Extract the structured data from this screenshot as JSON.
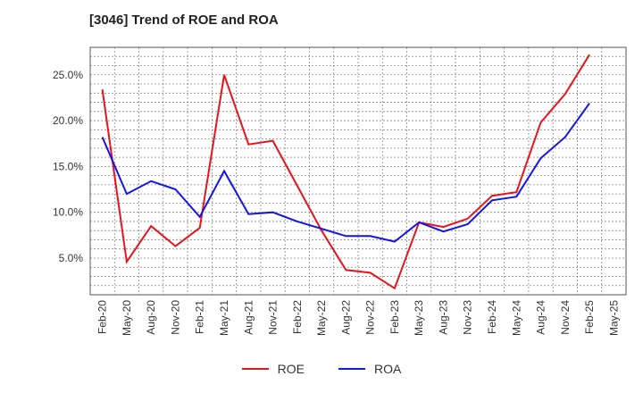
{
  "title": "[3046]  Trend of ROE and ROA",
  "chart_data": {
    "type": "line",
    "title": "[3046]  Trend of ROE and ROA",
    "xlabel": "",
    "ylabel": "",
    "ylim": [
      1.0,
      28.0
    ],
    "yticks": [
      5.0,
      10.0,
      15.0,
      20.0,
      25.0
    ],
    "ytick_labels": [
      "5.0%",
      "10.0%",
      "15.0%",
      "20.0%",
      "25.0%"
    ],
    "grid": true,
    "legend_position": "bottom-center",
    "categories": [
      "Feb-20",
      "May-20",
      "Aug-20",
      "Nov-20",
      "Feb-21",
      "May-21",
      "Aug-21",
      "Nov-21",
      "Feb-22",
      "May-22",
      "Aug-22",
      "Nov-22",
      "Feb-23",
      "May-23",
      "Aug-23",
      "Nov-23",
      "Feb-24",
      "May-24",
      "Aug-24",
      "Nov-24",
      "Feb-25",
      "May-25"
    ],
    "series": [
      {
        "name": "ROE",
        "color": "#e8141c",
        "values": [
          23.4,
          4.6,
          8.5,
          6.3,
          8.3,
          25.0,
          17.4,
          17.8,
          12.9,
          8.0,
          3.7,
          3.4,
          1.7,
          8.9,
          8.4,
          9.3,
          11.8,
          12.2,
          19.8,
          22.9,
          27.2,
          null
        ]
      },
      {
        "name": "ROA",
        "color": "#1414e8",
        "values": [
          18.2,
          12.0,
          13.4,
          12.5,
          9.5,
          14.5,
          9.8,
          10.0,
          9.0,
          8.2,
          7.4,
          7.4,
          6.8,
          8.9,
          7.9,
          8.7,
          11.3,
          11.7,
          15.9,
          18.2,
          21.9,
          null
        ]
      }
    ]
  }
}
